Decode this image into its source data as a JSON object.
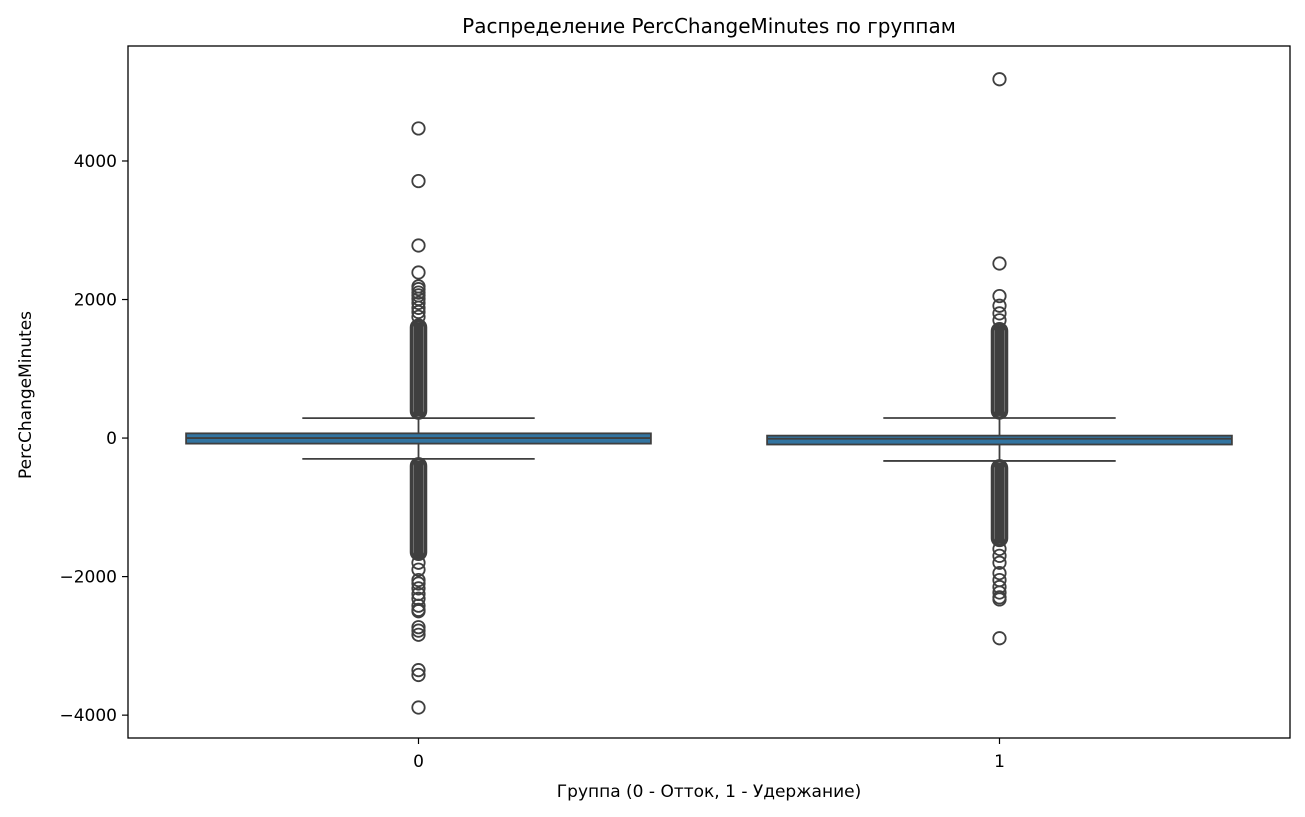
{
  "chart_data": {
    "type": "box",
    "title": "Распределение PercChangeMinutes по группам",
    "xlabel": "Группа (0 - Отток, 1 - Удержание)",
    "ylabel": "PercChangeMinutes",
    "categories": [
      "0",
      "1"
    ],
    "ylim": [
      -4330,
      5660
    ],
    "yticks": [
      4000,
      2000,
      0,
      -2000,
      -4000
    ],
    "ytick_labels": [
      "4000",
      "2000",
      "0",
      "−2000",
      "−4000"
    ],
    "grid": false,
    "box_color": "#3274a1",
    "line_color": "#3f3f3f",
    "boxes": [
      {
        "category": "0",
        "q1": -80,
        "median": 0,
        "q3": 68,
        "whisker_low": -300,
        "whisker_high": 288,
        "outliers": [
          4470,
          3710,
          2780,
          2390,
          2190,
          2150,
          2100,
          2060,
          2010,
          1950,
          1880,
          1820,
          1750,
          -1800,
          -1900,
          -2050,
          -2100,
          -2170,
          -2250,
          -2320,
          -2420,
          -2480,
          -2500,
          -2730,
          -2780,
          -2840,
          -3350,
          -3420,
          -3890
        ],
        "outlier_band_high": [
          288,
          1700
        ],
        "outlier_band_low": [
          -300,
          -1750
        ]
      },
      {
        "category": "1",
        "q1": -93,
        "median": -10,
        "q3": 35,
        "whisker_low": -330,
        "whisker_high": 290,
        "outliers": [
          5180,
          2520,
          2050,
          1910,
          1800,
          1700,
          -1600,
          -1700,
          -1800,
          -1950,
          -2050,
          -2150,
          -2230,
          -2300,
          -2330,
          -2890
        ],
        "outlier_band_high": [
          290,
          1650
        ],
        "outlier_band_low": [
          -330,
          -1550
        ]
      }
    ]
  }
}
